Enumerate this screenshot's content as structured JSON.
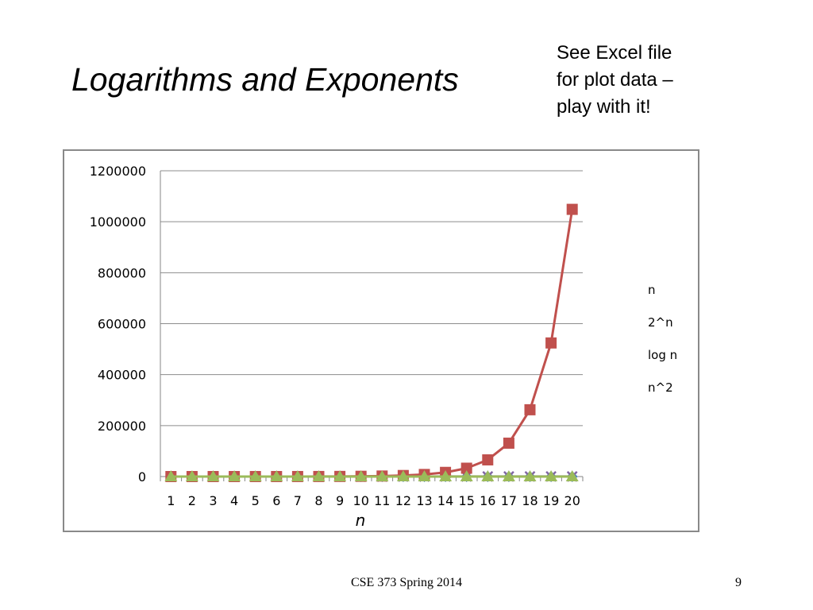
{
  "slide": {
    "title": "Logarithms and Exponents",
    "note_lines": [
      "See Excel file",
      "for plot data –",
      "play with it!"
    ],
    "footer": "CSE 373 Spring 2014",
    "page_number": "9"
  },
  "chart_data": {
    "type": "line",
    "title": "",
    "xlabel": "n",
    "ylabel": "",
    "x": [
      1,
      2,
      3,
      4,
      5,
      6,
      7,
      8,
      9,
      10,
      11,
      12,
      13,
      14,
      15,
      16,
      17,
      18,
      19,
      20
    ],
    "ylim": [
      0,
      1200000
    ],
    "yticks": [
      0,
      200000,
      400000,
      600000,
      800000,
      1000000,
      1200000
    ],
    "grid": true,
    "legend_position": "right",
    "series": [
      {
        "name": "n",
        "color": "#4F81BD",
        "marker": "diamond",
        "values": [
          1,
          2,
          3,
          4,
          5,
          6,
          7,
          8,
          9,
          10,
          11,
          12,
          13,
          14,
          15,
          16,
          17,
          18,
          19,
          20
        ]
      },
      {
        "name": "2^n",
        "color": "#C0504D",
        "marker": "square",
        "values": [
          2,
          4,
          8,
          16,
          32,
          64,
          128,
          256,
          512,
          1024,
          2048,
          4096,
          8192,
          16384,
          32768,
          65536,
          131072,
          262144,
          524288,
          1048576
        ]
      },
      {
        "name": "log n",
        "color": "#9BBB59",
        "marker": "triangle",
        "values": [
          0,
          1,
          1.58,
          2,
          2.32,
          2.58,
          2.81,
          3,
          3.17,
          3.32,
          3.46,
          3.58,
          3.7,
          3.81,
          3.91,
          4,
          4.09,
          4.17,
          4.25,
          4.32
        ]
      },
      {
        "name": "n^2",
        "color": "#8064A2",
        "marker": "x",
        "values": [
          1,
          4,
          9,
          16,
          25,
          36,
          49,
          64,
          81,
          100,
          121,
          144,
          169,
          196,
          225,
          256,
          289,
          324,
          361,
          400
        ]
      }
    ],
    "legend_order": [
      0,
      1,
      2,
      3
    ]
  }
}
